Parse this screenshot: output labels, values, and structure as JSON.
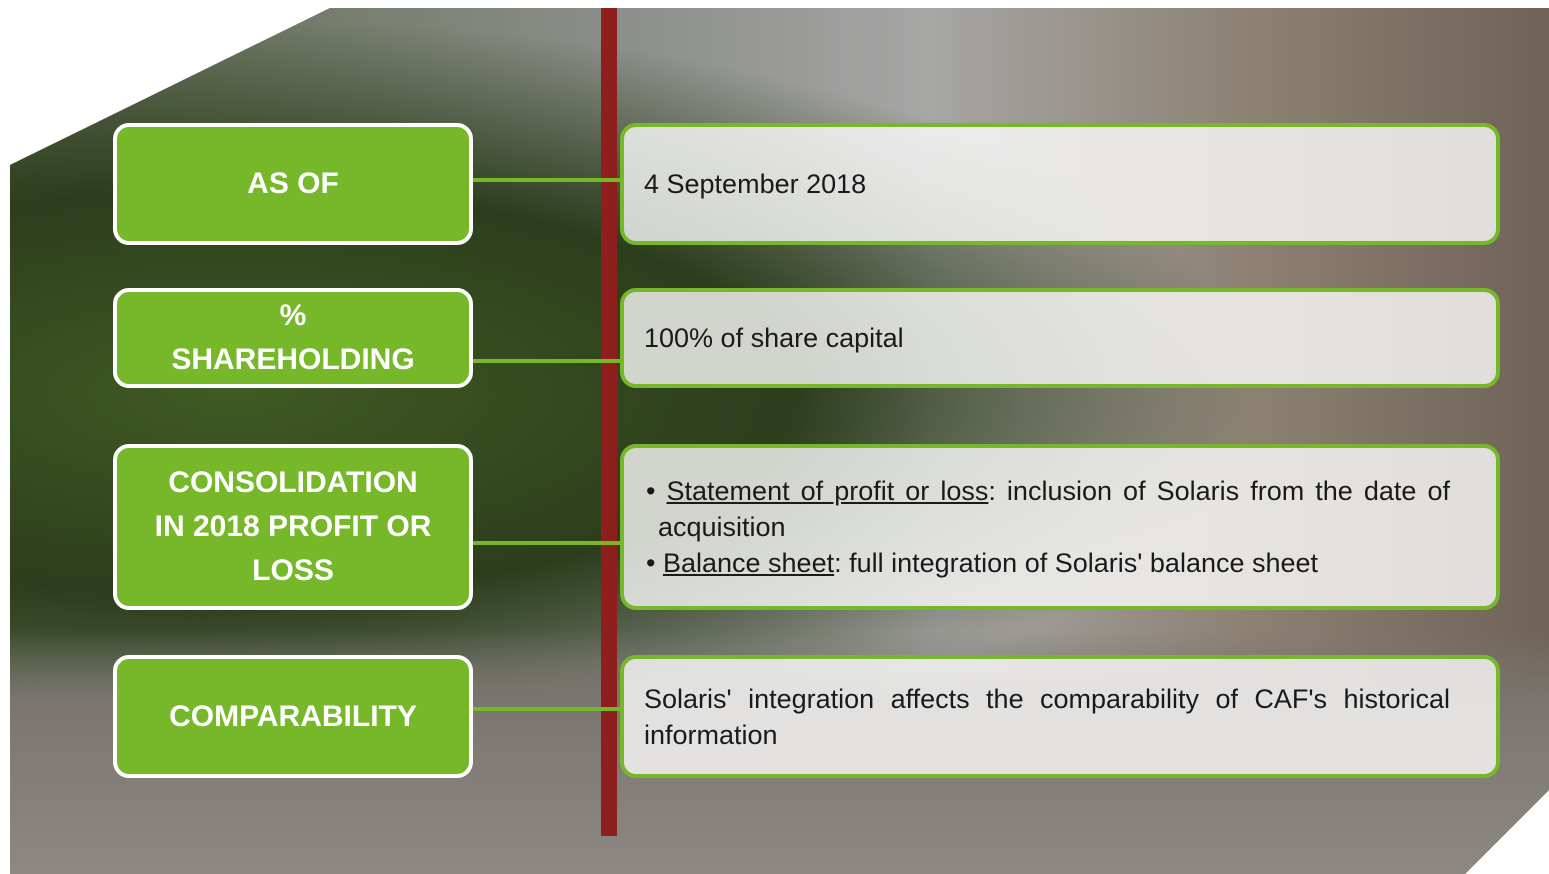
{
  "rows": [
    {
      "label_lines": [
        "AS OF"
      ],
      "paragraphs": [
        {
          "text": "4 September 2018"
        }
      ]
    },
    {
      "label_lines": [
        "%",
        "SHAREHOLDING"
      ],
      "paragraphs": [
        {
          "text": "100% of share capital"
        }
      ]
    },
    {
      "label_lines": [
        "CONSOLIDATION",
        "IN 2018 PROFIT OR",
        "LOSS"
      ],
      "bullets": [
        {
          "term": "Statement of profit or loss",
          "text": ": inclusion of Solaris from the date of acquisition"
        },
        {
          "term": "Balance sheet",
          "text": ": full integration of Solaris' balance sheet"
        }
      ]
    },
    {
      "label_lines": [
        "COMPARABILITY"
      ],
      "paragraphs": [
        {
          "text": "Solaris' integration affects the comparability of CAF's historical information"
        }
      ]
    }
  ]
}
